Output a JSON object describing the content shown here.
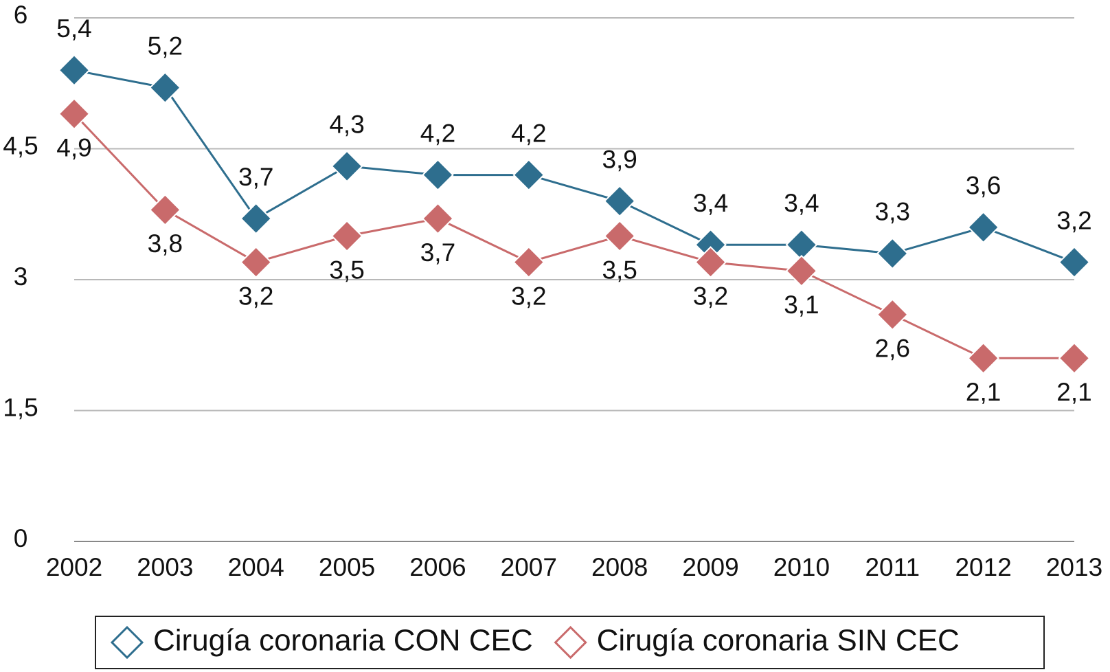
{
  "chart_data": {
    "type": "line",
    "categories": [
      "2002",
      "2003",
      "2004",
      "2005",
      "2006",
      "2007",
      "2008",
      "2009",
      "2010",
      "2011",
      "2012",
      "2013"
    ],
    "series": [
      {
        "name": "Cirugía coronaria CON CEC",
        "color": "#2e6e8e",
        "values": [
          5.4,
          5.2,
          3.7,
          4.3,
          4.2,
          4.2,
          3.9,
          3.4,
          3.4,
          3.3,
          3.6,
          3.2
        ],
        "value_labels": [
          "5,4",
          "5,2",
          "3,7",
          "4,3",
          "4,2",
          "4,2",
          "3,9",
          "3,4",
          "3,4",
          "3,3",
          "3,6",
          "3,2"
        ]
      },
      {
        "name": "Cirugía coronaria SIN CEC",
        "color": "#c96a6b",
        "values": [
          4.9,
          3.8,
          3.2,
          3.5,
          3.7,
          3.2,
          3.5,
          3.2,
          3.1,
          2.6,
          2.1,
          2.1
        ],
        "value_labels": [
          "4,9",
          "3,8",
          "3,2",
          "3,5",
          "3,7",
          "3,2",
          "3,5",
          "3,2",
          "3,1",
          "2,6",
          "2,1",
          "2,1"
        ]
      }
    ],
    "ylim": [
      0,
      6
    ],
    "yticks": [
      0,
      {
        "value": 1.5,
        "label": "1,5"
      },
      3,
      {
        "value": 4.5,
        "label": "4,5"
      },
      6
    ],
    "grid": true
  }
}
